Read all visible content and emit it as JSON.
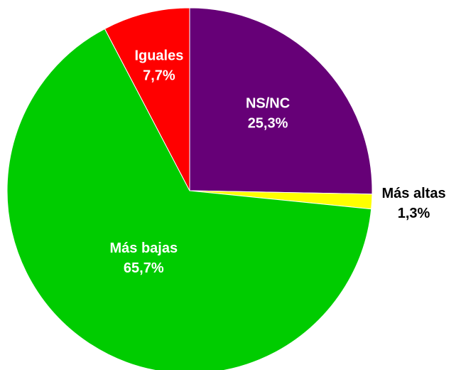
{
  "chart_data": {
    "type": "pie",
    "categories": [
      "NS/NC",
      "Más altas",
      "Más bajas",
      "Iguales"
    ],
    "values": [
      25.3,
      1.3,
      65.7,
      7.7
    ],
    "value_labels": [
      "25,3%",
      "1,3%",
      "65,7%",
      "7,7%"
    ],
    "colors": [
      "#660077",
      "#ffff00",
      "#00cc00",
      "#ff0000"
    ]
  }
}
